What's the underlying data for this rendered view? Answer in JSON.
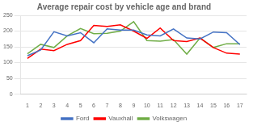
{
  "chart_data": {
    "type": "line",
    "title": "Average repair cost by vehicle age and brand",
    "x": [
      1,
      2,
      3,
      4,
      5,
      6,
      7,
      8,
      9,
      10,
      11,
      12,
      13,
      14,
      15,
      16,
      17
    ],
    "series": [
      {
        "name": "Ford",
        "color": "#4472c4",
        "values": [
          122,
          140,
          198,
          185,
          195,
          163,
          207,
          203,
          203,
          188,
          185,
          207,
          178,
          175,
          197,
          195,
          157
        ]
      },
      {
        "name": "Vauxhall",
        "color": "#ff0000",
        "values": [
          113,
          143,
          138,
          158,
          170,
          218,
          215,
          220,
          200,
          177,
          210,
          170,
          167,
          178,
          148,
          130,
          127
        ]
      },
      {
        "name": "Volkswagen",
        "color": "#70ad47",
        "values": [
          128,
          158,
          148,
          185,
          208,
          192,
          193,
          200,
          230,
          170,
          168,
          173,
          127,
          178,
          148,
          160,
          160
        ]
      }
    ],
    "xlim": [
      0.5,
      17.5
    ],
    "xticks": [
      1,
      2,
      3,
      4,
      5,
      6,
      7,
      8,
      9,
      10,
      11,
      12,
      13,
      14,
      15,
      16,
      17
    ],
    "ylim": [
      0,
      250
    ],
    "yticks": [
      0,
      50,
      100,
      150,
      200,
      250
    ],
    "grid": "y",
    "legend": "bottom"
  }
}
